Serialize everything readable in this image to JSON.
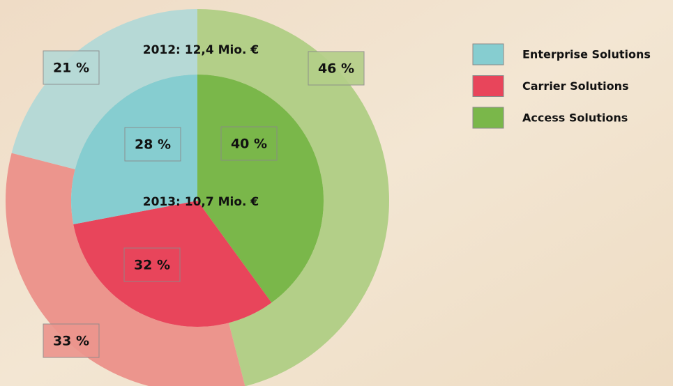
{
  "chart_data": {
    "type": "pie",
    "categories": [
      "Access Solutions",
      "Carrier Solutions",
      "Enterprise Solutions"
    ],
    "legend_order": [
      "Enterprise Solutions",
      "Carrier Solutions",
      "Access Solutions"
    ],
    "series": [
      {
        "name": "2012: 12,4 Mio. €",
        "values": [
          46,
          33,
          21
        ],
        "value_labels": [
          "46 %",
          "33 %",
          "21 %"
        ],
        "colors": [
          "#b3cf88",
          "#ec958d",
          "#b6d9d6"
        ]
      },
      {
        "name": "2013: 10,7 Mio. €",
        "values": [
          40,
          32,
          28
        ],
        "value_labels": [
          "40 %",
          "32 %",
          "28 %"
        ],
        "colors": [
          "#7ab74a",
          "#e8455b",
          "#86cdd0"
        ]
      }
    ]
  }
}
